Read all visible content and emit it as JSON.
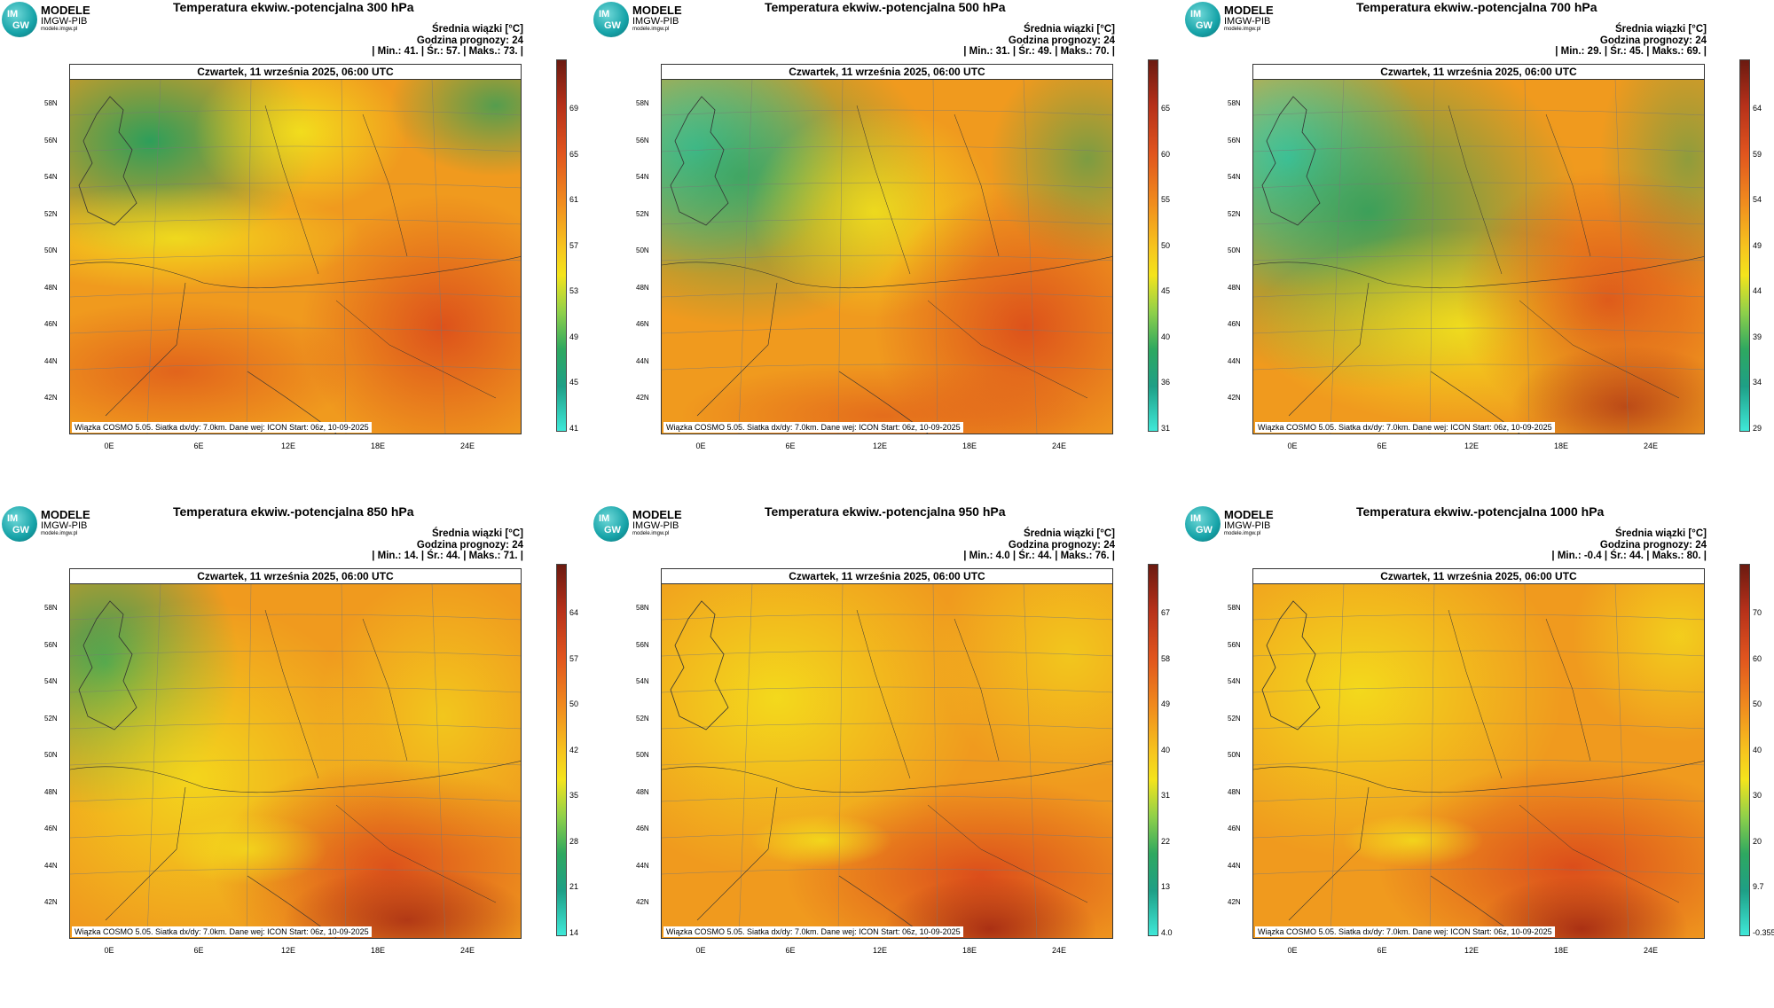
{
  "logo": {
    "line1": "MODELE",
    "line2": "IMGW-PIB",
    "line3": "modele.imgw.pl",
    "badge_top": "IM",
    "badge_bottom": "GW"
  },
  "common": {
    "info_title": "Średnia wiązki [°C]",
    "forecast_hour": "Godzina prognozy: 24",
    "date": "Czwartek, 11 września 2025, 06:00 UTC",
    "footer": "Wiązka COSMO 5.05. Siatka dx/dy: 7.0km. Dane wej: ICON Start: 06z, 10-09-2025",
    "lat_labels": [
      "58N",
      "56N",
      "54N",
      "52N",
      "50N",
      "48N",
      "46N",
      "44N",
      "42N"
    ],
    "lon_labels": [
      "0E",
      "6E",
      "12E",
      "18E",
      "24E"
    ],
    "colors": {
      "cold": "#3fe0d0",
      "green": "#2e9e5a",
      "yellow": "#f4e41c",
      "orange": "#f09a1e",
      "red": "#d8401a",
      "darkred": "#9b1e12"
    }
  },
  "panels": [
    {
      "title": "Temperatura ekwiw.-potencjalna 300 hPa",
      "stats": "| Min.: 41. | Śr.: 57. | Maks.: 73. |",
      "cbar": [
        "69",
        "65",
        "61",
        "57",
        "53",
        "49",
        "45",
        "41"
      ],
      "pattern": "p300"
    },
    {
      "title": "Temperatura ekwiw.-potencjalna 500 hPa",
      "stats": "| Min.: 31. | Śr.: 49. | Maks.: 70. |",
      "cbar": [
        "65",
        "60",
        "55",
        "50",
        "45",
        "40",
        "36",
        "31"
      ],
      "pattern": "p500"
    },
    {
      "title": "Temperatura ekwiw.-potencjalna 700 hPa",
      "stats": "| Min.: 29. | Śr.: 45. | Maks.: 69. |",
      "cbar": [
        "64",
        "59",
        "54",
        "49",
        "44",
        "39",
        "34",
        "29"
      ],
      "pattern": "p700"
    },
    {
      "title": "Temperatura ekwiw.-potencjalna 850 hPa",
      "stats": "| Min.: 14. | Śr.: 44. | Maks.: 71. |",
      "cbar": [
        "64",
        "57",
        "50",
        "42",
        "35",
        "28",
        "21",
        "14"
      ],
      "pattern": "p850"
    },
    {
      "title": "Temperatura ekwiw.-potencjalna 950 hPa",
      "stats": "| Min.: 4.0 | Śr.: 44. | Maks.: 76. |",
      "cbar": [
        "67",
        "58",
        "49",
        "40",
        "31",
        "22",
        "13",
        "4.0"
      ],
      "pattern": "p950"
    },
    {
      "title": "Temperatura ekwiw.-potencjalna 1000 hPa",
      "stats": "| Min.: -0.4 | Śr.: 44. | Maks.: 80. |",
      "cbar": [
        "70",
        "60",
        "50",
        "40",
        "30",
        "20",
        "9.7",
        "-0.355"
      ],
      "pattern": "p1000"
    }
  ]
}
